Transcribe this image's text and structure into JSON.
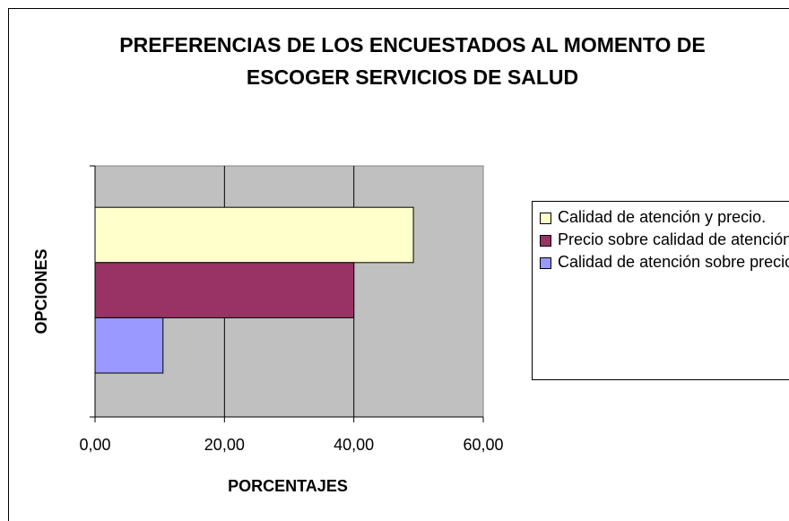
{
  "chart_data": {
    "type": "barh",
    "title": "PREFERENCIAS DE LOS ENCUESTADOS AL MOMENTO DE ESCOGER SERVICIOS DE SALUD",
    "xlabel": "PORCENTAJES",
    "ylabel": "OPCIONES",
    "categories": [
      null
    ],
    "series": [
      {
        "name": "Calidad de atención y precio.",
        "color": "#ffffcc",
        "values": [
          49.2
        ]
      },
      {
        "name": "Precio sobre calidad de atención",
        "color": "#993366",
        "values": [
          40.0
        ]
      },
      {
        "name": "Calidad de atención sobre precio",
        "color": "#9999ff",
        "values": [
          10.5
        ]
      }
    ],
    "xlim": [
      0,
      60
    ],
    "xticks": [
      {
        "value": 0,
        "label": "0,00"
      },
      {
        "value": 20,
        "label": "20,00"
      },
      {
        "value": 40,
        "label": "40,00"
      },
      {
        "value": 60,
        "label": "60,00"
      }
    ],
    "grid": true,
    "legend": "right"
  }
}
